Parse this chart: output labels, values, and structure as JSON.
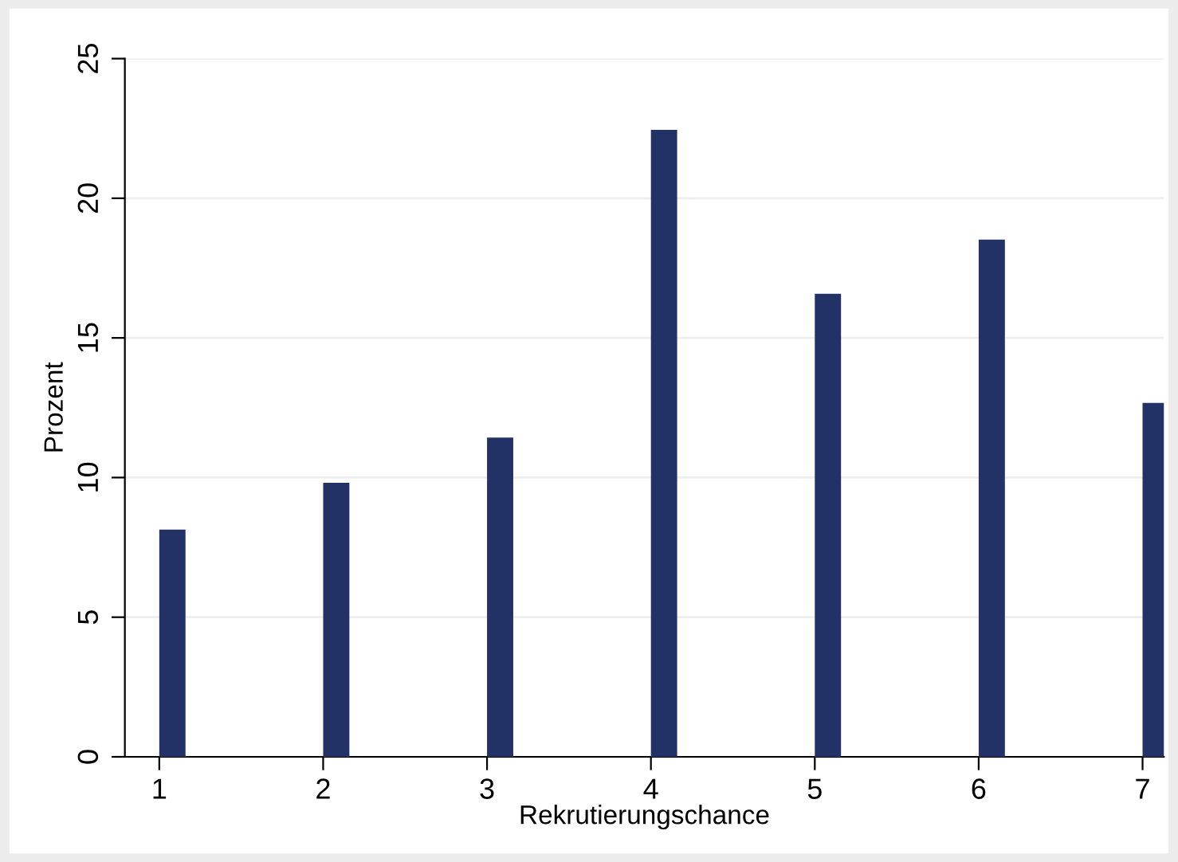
{
  "chart_data": {
    "type": "bar",
    "xlabel": "Rekrutierungschance",
    "ylabel": "Prozent",
    "x": [
      1,
      2,
      3,
      4,
      5,
      6,
      7
    ],
    "values": [
      8.14,
      9.81,
      11.43,
      22.45,
      16.58,
      18.52,
      12.67
    ],
    "color": "#233266",
    "xlim": [
      0.79,
      7.13
    ],
    "xticks": [
      1,
      2,
      3,
      4,
      5,
      6,
      7
    ],
    "ylim": [
      0,
      25
    ],
    "yticks": [
      0,
      5,
      10,
      15,
      20,
      25
    ],
    "grid": "y",
    "legend": false
  }
}
